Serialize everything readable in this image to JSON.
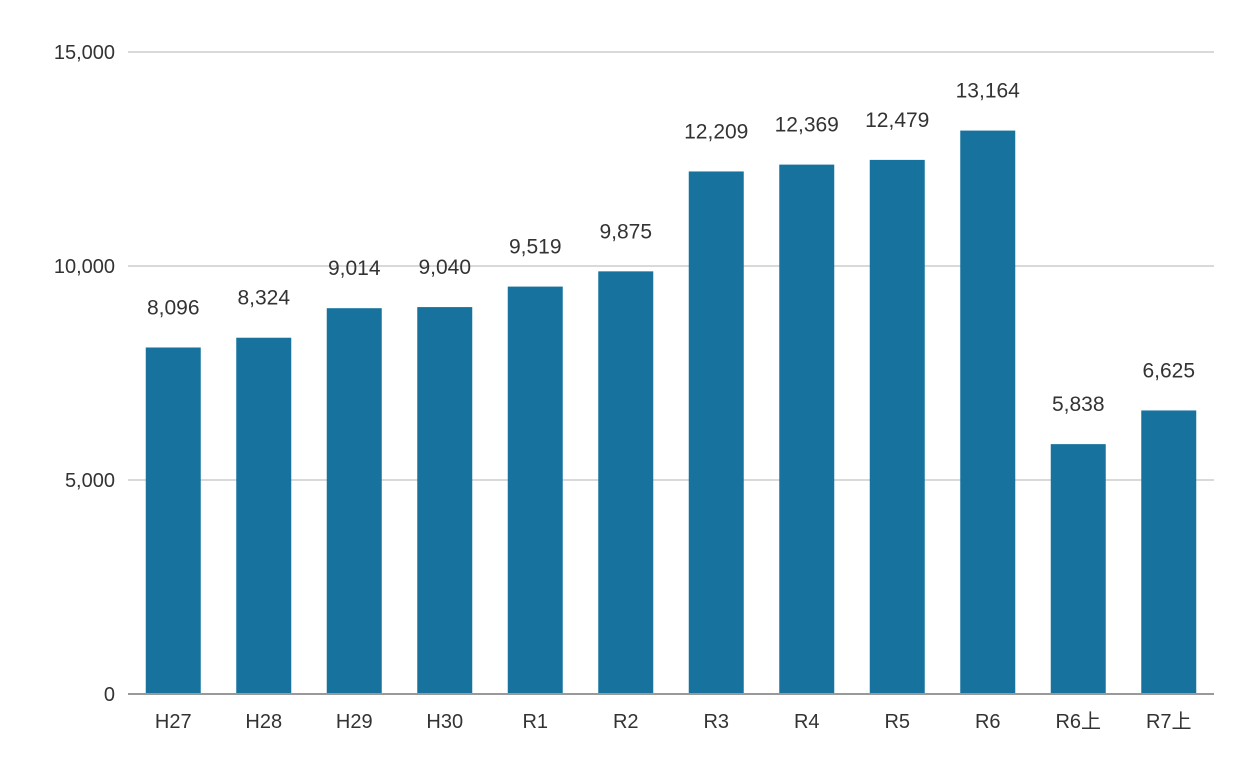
{
  "chart_data": {
    "type": "bar",
    "title": "",
    "xlabel": "",
    "ylabel": "",
    "categories": [
      "H27",
      "H28",
      "H29",
      "H30",
      "R1",
      "R2",
      "R3",
      "R4",
      "R5",
      "R6",
      "R6上",
      "R7上"
    ],
    "values": [
      8096,
      8324,
      9014,
      9040,
      9519,
      9875,
      12209,
      12369,
      12479,
      13164,
      5838,
      6625
    ],
    "data_labels": [
      "8,096",
      "8,324",
      "9,014",
      "9,040",
      "9,519",
      "9,875",
      "12,209",
      "12,369",
      "12,479",
      "13,164",
      "5,838",
      "6,625"
    ],
    "ylim": [
      0,
      15000
    ],
    "y_ticks": [
      0,
      5000,
      10000,
      15000
    ],
    "y_tick_labels": [
      "0",
      "5,000",
      "10,000",
      "15,000"
    ],
    "grid": true,
    "legend": "none"
  },
  "colors": {
    "bar": "#17739e",
    "grid": "#d9d9d9",
    "axis": "#999999",
    "text": "#333333"
  }
}
